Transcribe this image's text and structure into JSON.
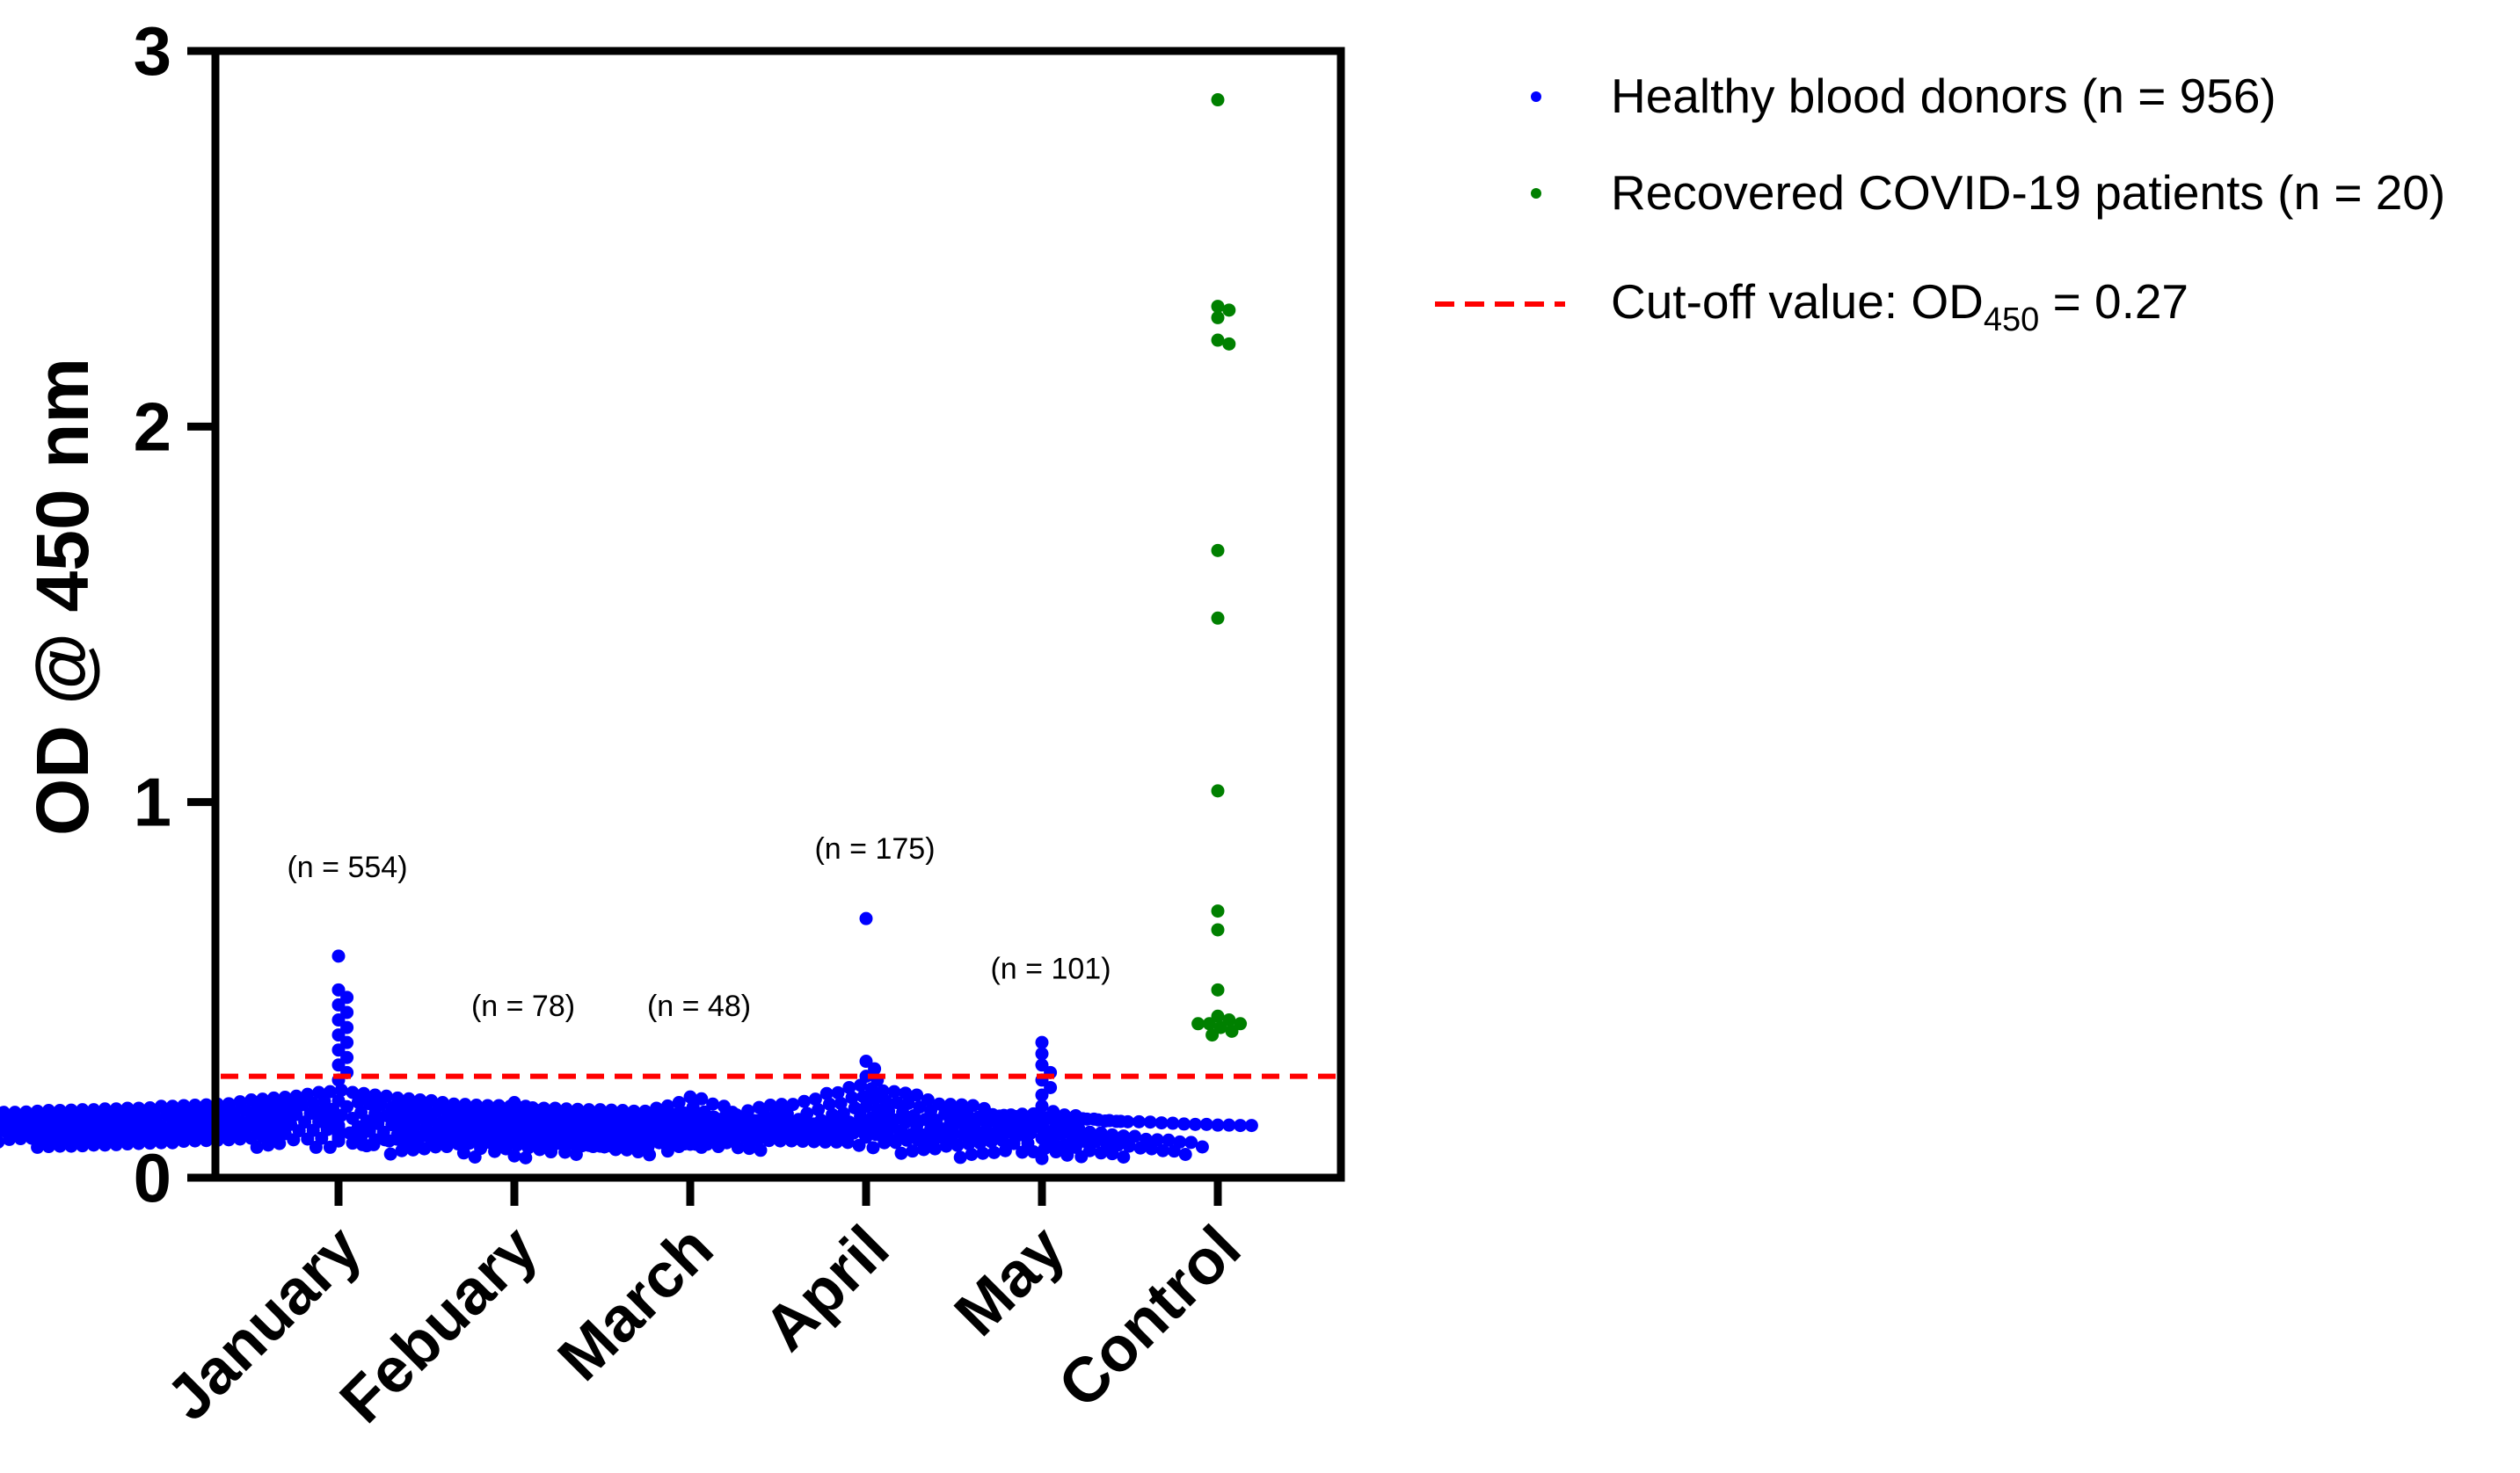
{
  "chart_data": {
    "type": "scatter",
    "ylabel": "OD @ 450 nm",
    "ylim": [
      0,
      3
    ],
    "yticks": [
      "0",
      "1",
      "2",
      "3"
    ],
    "categories": [
      "January",
      "Febuary",
      "March",
      "April",
      "May",
      "Control"
    ],
    "group_counts": [
      {
        "category": "January",
        "label": "(n = 554)",
        "label_y": 0.8
      },
      {
        "category": "Febuary",
        "label": "(n = 78)",
        "label_y": 0.43
      },
      {
        "category": "March",
        "label": "(n = 48)",
        "label_y": 0.43
      },
      {
        "category": "April",
        "label": "(n = 175)",
        "label_y": 0.85
      },
      {
        "category": "May",
        "label": "(n = 101)",
        "label_y": 0.53
      }
    ],
    "series": [
      {
        "name": "Healthy blood donors",
        "color": "#0000ff",
        "groups": [
          {
            "category": "January",
            "approx_median": 0.11,
            "max": 0.59,
            "outliers": [
              0.59,
              0.5,
              0.48,
              0.46,
              0.44,
              0.42,
              0.4,
              0.38,
              0.36,
              0.34,
              0.32,
              0.3,
              0.28,
              0.26
            ]
          },
          {
            "category": "Febuary",
            "approx_median": 0.08,
            "max": 0.2,
            "outliers": [
              0.2,
              0.19
            ]
          },
          {
            "category": "March",
            "approx_median": 0.1,
            "max": 0.21,
            "outliers": [
              0.21,
              0.2,
              0.19
            ]
          },
          {
            "category": "April",
            "approx_median": 0.13,
            "max": 0.69,
            "outliers": [
              0.69,
              0.31,
              0.29,
              0.27,
              0.26
            ]
          },
          {
            "category": "May",
            "approx_median": 0.08,
            "max": 0.36,
            "outliers": [
              0.36,
              0.33,
              0.3,
              0.28,
              0.26,
              0.24,
              0.22
            ]
          }
        ]
      },
      {
        "name": "Recovered COVID-19 patients",
        "color": "#008000",
        "groups": [
          {
            "category": "Control",
            "values": [
              2.87,
              2.32,
              2.31,
              2.29,
              2.23,
              2.22,
              1.67,
              1.49,
              1.03,
              0.71,
              0.66,
              0.5,
              0.43,
              0.42,
              0.41,
              0.41,
              0.41,
              0.4,
              0.39,
              0.38
            ]
          }
        ]
      }
    ],
    "cutoff": {
      "value": 0.27,
      "color": "#ff0000"
    },
    "legend": {
      "placement": "top-right",
      "items": [
        {
          "label": "Healthy blood donors (n = 956)",
          "color": "#0000ff",
          "kind": "dot"
        },
        {
          "label": "Recovered COVID-19 patients (n = 20)",
          "color": "#008000",
          "kind": "dot"
        },
        {
          "label_prefix": "Cut-off value: OD",
          "label_sub": "450",
          "label_suffix": " = 0.27",
          "color": "#ff0000",
          "kind": "dashed-line"
        }
      ]
    }
  }
}
